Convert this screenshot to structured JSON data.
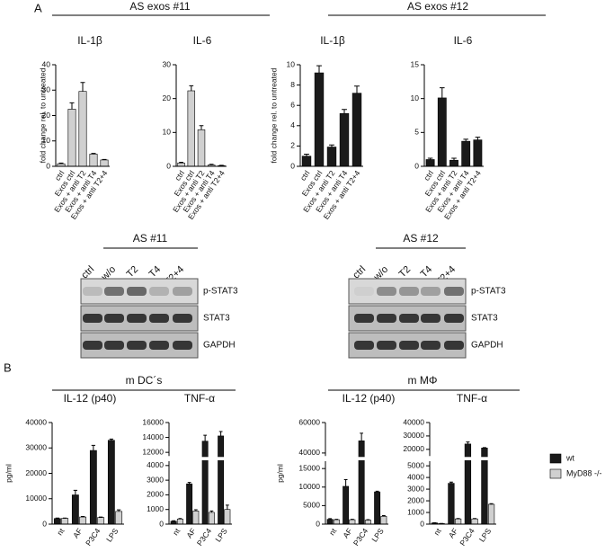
{
  "panels": {
    "a": "A",
    "b": "B"
  },
  "headings": {
    "as11": "AS exos #11",
    "as12": "AS exos #12",
    "mdc": "m DC´s",
    "mmac": "m MΦ"
  },
  "blots": [
    {
      "title": "AS #11",
      "lanes": [
        "ctrl",
        "w/o",
        "T2",
        "T4",
        "T2+4"
      ],
      "rows": [
        "p-STAT3",
        "STAT3",
        "GAPDH"
      ]
    },
    {
      "title": "AS #12",
      "lanes": [
        "ctrl",
        "w/o",
        "T2",
        "T4",
        "T2+4"
      ],
      "rows": [
        "p-STAT3",
        "STAT3",
        "GAPDH"
      ]
    }
  ],
  "chart_data": [
    {
      "type": "bar",
      "title": "IL-1β",
      "y_label": "fold change rel. to untreated",
      "categories": [
        "ctrl",
        "Exos ctrl",
        "Exos + anti T2",
        "Exos + anti T4",
        "Exos + anti T2+4"
      ],
      "values": [
        1,
        22.5,
        29.5,
        4.8,
        2.5
      ],
      "errors": [
        0.3,
        2.5,
        3.5,
        0.3,
        0.2
      ],
      "color": "#d0d0d0",
      "ylim": [
        0,
        40
      ],
      "yticks": [
        0,
        10,
        20,
        30,
        40
      ]
    },
    {
      "type": "bar",
      "title": "IL-6",
      "categories": [
        "ctrl",
        "Exos ctrl",
        "Exos + anti T2",
        "Exos + anti T4",
        "Exos + anti T2+4"
      ],
      "values": [
        1,
        22.3,
        10.8,
        0.4,
        0.2
      ],
      "errors": [
        0.2,
        1.5,
        1.2,
        0.2,
        0.1
      ],
      "color": "#d0d0d0",
      "ylim": [
        0,
        30
      ],
      "yticks": [
        0,
        10,
        20,
        30
      ]
    },
    {
      "type": "bar",
      "title": "IL-1β",
      "y_label": "fold change rel. to untreated",
      "categories": [
        "ctrl",
        "Exos ctrl",
        "Exos + anti T2",
        "Exos + anti T4",
        "Exos + anti T2+4"
      ],
      "values": [
        1.0,
        9.2,
        1.9,
        5.2,
        7.2
      ],
      "errors": [
        0.2,
        0.7,
        0.2,
        0.4,
        0.7
      ],
      "color": "#1a1a1a",
      "ylim": [
        0,
        10
      ],
      "yticks": [
        0,
        2,
        4,
        6,
        8,
        10
      ]
    },
    {
      "type": "bar",
      "title": "IL-6",
      "categories": [
        "ctrl",
        "Exos ctrl",
        "Exos + anti T2",
        "Exos + anti T4",
        "Exos + anti T2+4"
      ],
      "values": [
        1.0,
        10.1,
        0.9,
        3.7,
        3.9
      ],
      "errors": [
        0.2,
        1.5,
        0.3,
        0.3,
        0.4
      ],
      "color": "#1a1a1a",
      "ylim": [
        0,
        15
      ],
      "yticks": [
        0,
        5,
        10,
        15
      ]
    },
    {
      "type": "bar",
      "title": "IL-12 (p40)",
      "y_label": "pg/ml",
      "categories": [
        "nt",
        "AF",
        "P3C4",
        "LPS"
      ],
      "series": [
        {
          "name": "wt",
          "color": "#1a1a1a",
          "values": [
            2200,
            11500,
            29000,
            33000
          ],
          "errors": [
            200,
            1800,
            2000,
            500
          ]
        },
        {
          "name": "MyD88 -/-",
          "color": "#d0d0d0",
          "values": [
            2300,
            2800,
            2600,
            5000
          ],
          "errors": [
            100,
            200,
            200,
            600
          ]
        }
      ],
      "ylim": [
        0,
        40000
      ],
      "yticks": [
        0,
        10000,
        20000,
        30000,
        40000
      ]
    },
    {
      "type": "bar",
      "title": "TNF-α",
      "categories": [
        "nt",
        "AF",
        "P3C4",
        "LPS"
      ],
      "series": [
        {
          "color": "#1a1a1a",
          "values": [
            200,
            2750,
            13500,
            14200
          ],
          "errors": [
            30,
            100,
            800,
            600
          ]
        },
        {
          "color": "#d0d0d0",
          "values": [
            350,
            900,
            800,
            1000
          ],
          "errors": [
            30,
            80,
            100,
            300
          ]
        }
      ],
      "ylim": [
        0,
        16000
      ],
      "ybreak": [
        4300,
        11500
      ],
      "yticks": [
        0,
        1000,
        2000,
        3000,
        4000,
        12000,
        14000,
        16000
      ]
    },
    {
      "type": "bar",
      "title": "IL-12 (p40)",
      "y_label": "pg/ml",
      "categories": [
        "nt",
        "AF",
        "P3C4",
        "LPS"
      ],
      "series": [
        {
          "color": "#1a1a1a",
          "values": [
            1300,
            10200,
            48000,
            8700
          ],
          "errors": [
            200,
            1800,
            5000,
            200
          ]
        },
        {
          "color": "#d0d0d0",
          "values": [
            1200,
            1200,
            1100,
            2100
          ],
          "errors": [
            100,
            100,
            100,
            200
          ]
        }
      ],
      "ylim": [
        0,
        60000
      ],
      "ybreak": [
        17000,
        38000
      ],
      "yticks": [
        0,
        5000,
        10000,
        15000,
        40000,
        60000
      ]
    },
    {
      "type": "bar",
      "title": "TNF-α",
      "categories": [
        "nt",
        "AF",
        "P3C4",
        "LPS"
      ],
      "series": [
        {
          "color": "#1a1a1a",
          "values": [
            100,
            3500,
            24000,
            21000
          ],
          "errors": [
            20,
            100,
            1500,
            300
          ]
        },
        {
          "color": "#d0d0d0",
          "values": [
            50,
            450,
            450,
            1700
          ],
          "errors": [
            10,
            30,
            30,
            50
          ]
        }
      ],
      "ylim": [
        0,
        40000
      ],
      "ybreak": [
        5400,
        15000
      ],
      "yticks": [
        0,
        1000,
        2000,
        3000,
        4000,
        5000,
        20000,
        30000,
        40000
      ]
    }
  ]
}
